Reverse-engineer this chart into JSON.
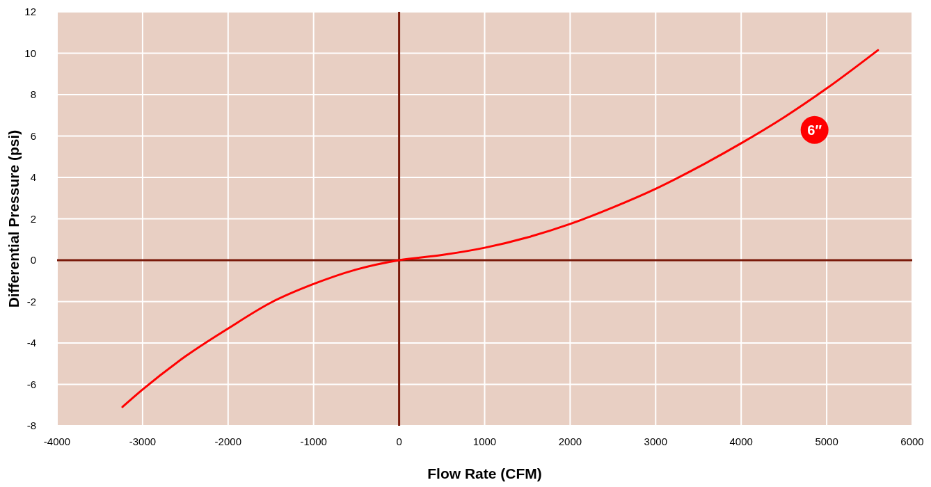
{
  "chart_data": {
    "type": "line",
    "xlabel": "Flow Rate (CFM)",
    "ylabel": "Differential Pressure (psi)",
    "xlim": [
      -4000,
      6000
    ],
    "xticks": [
      -4000,
      -3000,
      -2000,
      -1000,
      0,
      1000,
      2000,
      3000,
      4000,
      5000,
      6000
    ],
    "ylim": [
      -8,
      12
    ],
    "yticks": [
      -8,
      -6,
      -4,
      -2,
      0,
      2,
      4,
      6,
      8,
      10,
      12
    ],
    "grid": true,
    "marker": "none",
    "line_style": "solid",
    "series": [
      {
        "name": "6″",
        "color": "#ff0000",
        "x": [
          -3235,
          -3000,
          -2500,
          -2000,
          -1500,
          -1000,
          -500,
          0,
          500,
          1000,
          1500,
          2000,
          2500,
          3000,
          3500,
          4000,
          4500,
          5000,
          5600
        ],
        "values": [
          -7.09,
          -6.25,
          -4.65,
          -3.3,
          -2.05,
          -1.15,
          -0.45,
          0,
          0.25,
          0.6,
          1.1,
          1.75,
          2.55,
          3.45,
          4.5,
          5.65,
          6.9,
          8.3,
          10.15
        ]
      }
    ]
  }
}
